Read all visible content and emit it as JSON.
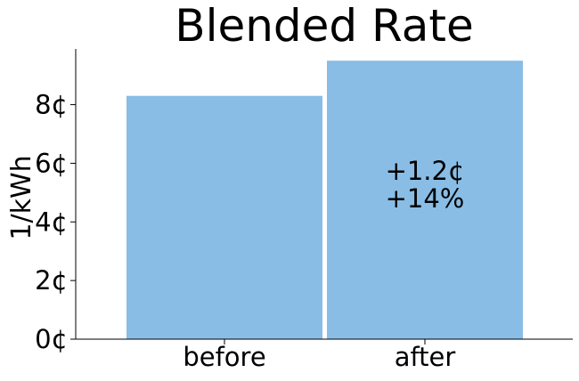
{
  "chart_data": {
    "type": "bar",
    "title": "Blended Rate",
    "ylabel": "1/kWh",
    "xlabel": "",
    "categories": [
      "before",
      "after"
    ],
    "values": [
      8.3,
      9.5
    ],
    "ylim": [
      0,
      9.9
    ],
    "yticks": [
      0,
      2,
      4,
      6,
      8
    ],
    "ytick_labels": [
      "0¢",
      "2¢",
      "4¢",
      "6¢",
      "8¢"
    ],
    "bar_color": "#89bde5",
    "grid": false,
    "annotation": {
      "category": "after",
      "lines": [
        "+1.2¢",
        "+14%"
      ]
    }
  }
}
